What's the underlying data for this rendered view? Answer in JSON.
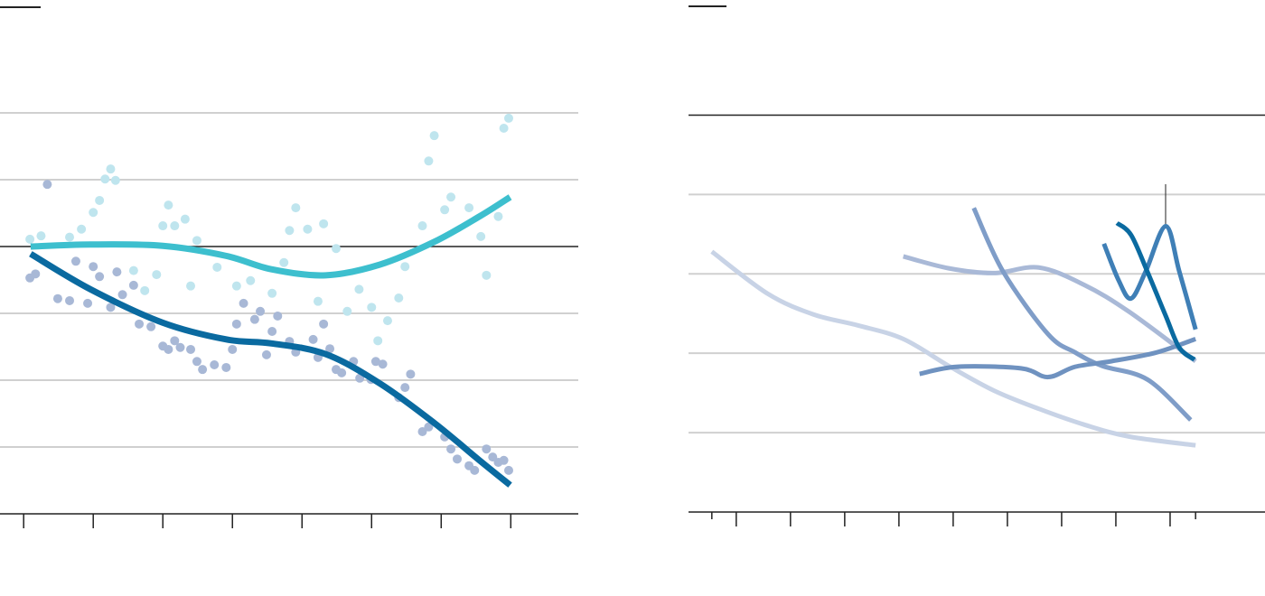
{
  "chart_data": [
    {
      "type": "scatter",
      "ylim": [
        0,
        6
      ],
      "yticks": [
        1,
        2,
        3,
        5,
        6
      ],
      "reference_line": 4,
      "xlim": [
        -0.34,
        7.97
      ],
      "xticks": [
        0,
        1,
        2,
        3,
        4,
        5,
        6,
        7
      ],
      "grid": true,
      "series": [
        {
          "color": "#bfe5ee",
          "x": [
            0.09,
            0.25,
            0.66,
            0.83,
            1.0,
            1.09,
            1.17,
            1.25,
            1.32,
            1.58,
            1.74,
            1.91,
            2.0,
            2.08,
            2.17,
            2.32,
            2.4,
            2.49,
            2.78,
            3.06,
            3.26,
            3.57,
            3.74,
            3.82,
            3.91,
            4.08,
            4.23,
            4.31,
            4.49,
            4.65,
            4.82,
            5.0,
            5.09,
            5.23,
            5.39,
            5.48,
            5.73,
            5.82,
            5.9,
            6.05,
            6.14,
            6.4,
            6.57,
            6.65,
            6.82,
            6.9,
            6.97
          ],
          "values": [
            4.11,
            4.16,
            4.14,
            4.26,
            4.51,
            4.69,
            5.01,
            5.16,
            4.99,
            3.64,
            3.34,
            3.58,
            4.31,
            4.62,
            4.31,
            4.41,
            3.41,
            4.09,
            3.69,
            3.41,
            3.49,
            3.3,
            3.76,
            4.24,
            4.58,
            4.26,
            3.18,
            4.34,
            3.97,
            3.03,
            3.36,
            3.09,
            2.59,
            2.89,
            3.23,
            3.7,
            4.31,
            5.28,
            5.66,
            4.55,
            4.74,
            4.58,
            4.15,
            3.57,
            4.45,
            5.77,
            5.92
          ]
        },
        {
          "color": "#a8b8d6",
          "x": [
            0.09,
            0.17,
            0.34,
            0.49,
            0.66,
            0.75,
            0.92,
            1.0,
            1.09,
            1.25,
            1.34,
            1.42,
            1.58,
            1.66,
            1.83,
            2.0,
            2.08,
            2.17,
            2.25,
            2.4,
            2.49,
            2.57,
            2.74,
            2.91,
            3.0,
            3.06,
            3.16,
            3.32,
            3.4,
            3.49,
            3.57,
            3.65,
            3.82,
            3.91,
            4.16,
            4.23,
            4.31,
            4.4,
            4.49,
            4.57,
            4.74,
            4.83,
            4.99,
            5.06,
            5.16,
            5.39,
            5.48,
            5.56,
            5.73,
            5.82,
            6.05,
            6.14,
            6.23,
            6.4,
            6.48,
            6.65,
            6.74,
            6.82,
            6.9,
            6.97
          ],
          "values": [
            3.53,
            3.59,
            4.93,
            3.22,
            3.19,
            3.78,
            3.15,
            3.7,
            3.55,
            3.09,
            3.62,
            3.28,
            3.42,
            2.84,
            2.8,
            2.51,
            2.46,
            2.59,
            2.49,
            2.46,
            2.28,
            2.16,
            2.23,
            2.19,
            2.46,
            2.84,
            3.15,
            2.91,
            3.03,
            2.38,
            2.73,
            2.96,
            2.58,
            2.42,
            2.61,
            2.34,
            2.84,
            2.47,
            2.16,
            2.11,
            2.28,
            2.03,
            2.01,
            2.28,
            2.24,
            1.74,
            1.89,
            2.09,
            1.23,
            1.3,
            1.15,
            0.97,
            0.82,
            0.72,
            0.65,
            0.97,
            0.85,
            0.77,
            0.8,
            0.65
          ]
        },
        {
          "type": "line",
          "color": "#3dbfce",
          "x": [
            0.1,
            0.96,
            2.0,
            2.91,
            3.56,
            4.34,
            5.12,
            5.9,
            6.55,
            6.99
          ],
          "values": [
            4.0,
            4.03,
            4.01,
            3.86,
            3.66,
            3.57,
            3.73,
            4.07,
            4.45,
            4.74
          ]
        },
        {
          "type": "line",
          "color": "#0a6aa0",
          "x": [
            0.1,
            0.96,
            2.0,
            2.91,
            3.56,
            4.34,
            5.12,
            5.9,
            6.55,
            6.99
          ],
          "values": [
            3.89,
            3.36,
            2.86,
            2.61,
            2.55,
            2.39,
            1.95,
            1.36,
            0.8,
            0.43
          ]
        }
      ]
    },
    {
      "type": "line",
      "ylim": [
        0,
        6.45
      ],
      "yticks": [
        1,
        2,
        3,
        4
      ],
      "reference_line": 5,
      "xlim": [
        -0.88,
        9.75
      ],
      "xticks": [
        0,
        1,
        2,
        3,
        4,
        5,
        6,
        7,
        8
      ],
      "minor_xticks": [
        -0.45,
        8.47
      ],
      "grid": true,
      "series": [
        {
          "color": "#c8d3e6",
          "x": [
            -0.45,
            0.58,
            1.42,
            2.25,
            3.08,
            3.92,
            4.75,
            5.58,
            6.42,
            7.25,
            8.47
          ],
          "values": [
            3.28,
            2.75,
            2.49,
            2.35,
            2.18,
            1.84,
            1.53,
            1.3,
            1.1,
            0.95,
            0.84
          ]
        },
        {
          "color": "#a9b9d7",
          "x": [
            3.08,
            3.92,
            4.75,
            5.58,
            6.42,
            7.25,
            8.47
          ],
          "values": [
            3.22,
            3.07,
            3.01,
            3.08,
            2.86,
            2.52,
            1.9
          ]
        },
        {
          "color": "#7f9dc8",
          "x": [
            4.38,
            4.92,
            5.75,
            6.25,
            6.75,
            7.58,
            8.38
          ],
          "values": [
            3.83,
            3.03,
            2.24,
            2.01,
            1.84,
            1.67,
            1.16
          ]
        },
        {
          "color": "#6f92c0",
          "x": [
            3.38,
            4.08,
            5.25,
            5.75,
            6.25,
            6.92,
            7.75,
            8.47
          ],
          "values": [
            1.74,
            1.83,
            1.81,
            1.7,
            1.83,
            1.9,
            2.01,
            2.18
          ]
        },
        {
          "color": "#3f7fb6",
          "x": [
            6.78,
            7.05,
            7.28,
            7.55,
            7.92,
            8.17,
            8.47
          ],
          "values": [
            3.38,
            2.92,
            2.69,
            3.03,
            3.6,
            3.03,
            2.3
          ]
        },
        {
          "color": "#0a6aa0",
          "x": [
            7.02,
            7.28,
            7.58,
            7.92,
            8.17,
            8.45
          ],
          "values": [
            3.64,
            3.49,
            3.03,
            2.47,
            2.07,
            1.92
          ]
        }
      ]
    }
  ]
}
